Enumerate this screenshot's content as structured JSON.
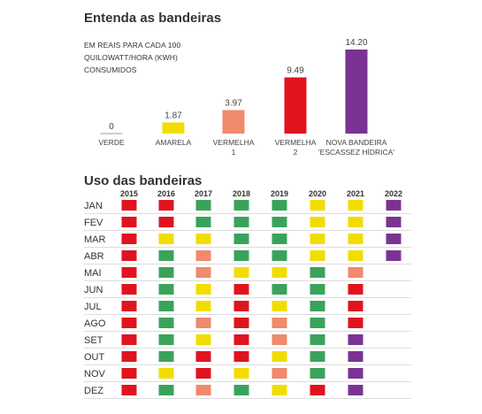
{
  "bar_section": {
    "title": "Entenda as bandeiras",
    "unit_label": "EM REAIS PARA CADA 100\nQUILOWATT/HORA (KWH)\nCONSUMIDOS"
  },
  "grid_section": {
    "title": "Uso das bandeiras"
  },
  "colors": {
    "VERDE": "#3aa35b",
    "AMARELA": "#f2dd00",
    "VERMELHA 1": "#f08a6c",
    "VERMELHA 2": "#e0141e",
    "ESCASSEZ": "#7b3393"
  },
  "chart_data": [
    {
      "type": "bar",
      "title": "Entenda as bandeiras",
      "unit": "EM REAIS PARA CADA 100 QUILOWATT/HORA (KWH) CONSUMIDOS",
      "categories": [
        [
          "VERDE"
        ],
        [
          "AMARELA"
        ],
        [
          "VERMELHA",
          "1"
        ],
        [
          "VERMELHA",
          "2"
        ],
        [
          "NOVA BANDEIRA",
          "'ESCASSEZ HÍDRICA'"
        ]
      ],
      "values": [
        0,
        1.87,
        3.97,
        9.49,
        14.2
      ],
      "value_labels": [
        "0",
        "1.87",
        "3.97",
        "9.49",
        "14.20"
      ],
      "bar_colors": [
        "#3aa35b",
        "#f2dd00",
        "#f08a6c",
        "#e0141e",
        "#7b3393"
      ],
      "ylim": [
        0,
        14.2
      ]
    },
    {
      "type": "heatmap",
      "title": "Uso das bandeiras",
      "columns": [
        "2015",
        "2016",
        "2017",
        "2018",
        "2019",
        "2020",
        "2021",
        "2022"
      ],
      "rows": [
        "JAN",
        "FEV",
        "MAR",
        "ABR",
        "MAI",
        "JUN",
        "JUL",
        "AGO",
        "SET",
        "OUT",
        "NOV",
        "DEZ"
      ],
      "legend": {
        "G": "VERDE",
        "Y": "AMARELA",
        "O": "VERMELHA 1",
        "R": "VERMELHA 2",
        "P": "ESCASSEZ"
      },
      "cells": [
        [
          "R",
          "R",
          "G",
          "G",
          "G",
          "Y",
          "Y",
          "P"
        ],
        [
          "R",
          "R",
          "G",
          "G",
          "G",
          "Y",
          "Y",
          "P"
        ],
        [
          "R",
          "Y",
          "Y",
          "G",
          "G",
          "Y",
          "Y",
          "P"
        ],
        [
          "R",
          "G",
          "O",
          "G",
          "G",
          "Y",
          "Y",
          "P"
        ],
        [
          "R",
          "G",
          "O",
          "Y",
          "Y",
          "G",
          "O",
          ""
        ],
        [
          "R",
          "G",
          "Y",
          "R",
          "G",
          "G",
          "R",
          ""
        ],
        [
          "R",
          "G",
          "Y",
          "R",
          "Y",
          "G",
          "R",
          ""
        ],
        [
          "R",
          "G",
          "O",
          "R",
          "O",
          "G",
          "R",
          ""
        ],
        [
          "R",
          "G",
          "Y",
          "R",
          "O",
          "G",
          "P",
          ""
        ],
        [
          "R",
          "G",
          "R",
          "R",
          "Y",
          "G",
          "P",
          ""
        ],
        [
          "R",
          "Y",
          "R",
          "Y",
          "O",
          "G",
          "P",
          ""
        ],
        [
          "R",
          "G",
          "O",
          "G",
          "Y",
          "R",
          "P",
          ""
        ]
      ]
    }
  ]
}
